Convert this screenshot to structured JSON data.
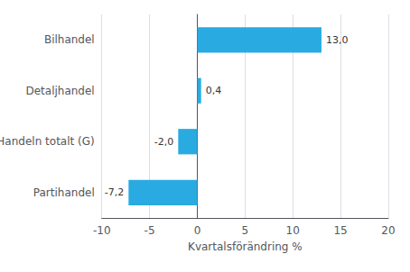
{
  "chart_data": {
    "type": "bar",
    "orientation": "horizontal",
    "categories": [
      "Partihandel",
      "Handeln totalt (G)",
      "Detaljhandel",
      "Bilhandel"
    ],
    "values": [
      -7.2,
      -2.0,
      0.4,
      13.0
    ],
    "value_labels": [
      "-7,2",
      "-2,0",
      "0,4",
      "13,0"
    ],
    "data_labels": true,
    "color": "#29abe2",
    "xlim": [
      -10,
      20
    ],
    "xticks": [
      -10,
      -5,
      0,
      5,
      10,
      15,
      20
    ],
    "xlabel": "Kvartalsförändring %",
    "grid": true
  }
}
